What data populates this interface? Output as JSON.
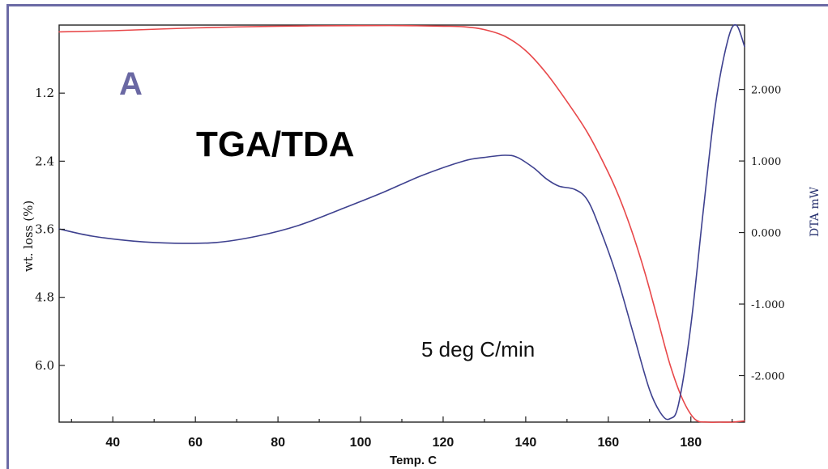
{
  "chart_data": {
    "type": "line",
    "panel_label": "A",
    "title": "TGA/TDA",
    "annotation": "5 deg C/min",
    "xlabel": "Temp. C",
    "ylabel": "wt. loss (%)",
    "y2label": "DTA mW",
    "xlim": [
      27,
      193
    ],
    "ylim": [
      0,
      7.0
    ],
    "y_inverted": true,
    "y2lim": [
      -2.65,
      2.9
    ],
    "xticks": [
      40,
      60,
      80,
      100,
      120,
      140,
      160,
      180
    ],
    "xtick_labels": [
      "40",
      "60",
      "80",
      "100",
      "120",
      "140",
      "160",
      "180"
    ],
    "yticks": [
      1.2,
      2.4,
      3.6,
      4.8,
      6.0
    ],
    "ytick_labels": [
      "1.2",
      "2.4",
      "3.6",
      "4.8",
      "6.0"
    ],
    "y2ticks": [
      2.0,
      1.0,
      0.0,
      -1.0,
      -2.0
    ],
    "y2tick_labels": [
      "2.000",
      "1.000",
      "0.000",
      "-1.000",
      "-2.000"
    ],
    "grid": false,
    "series": [
      {
        "name": "",
        "axis": "left",
        "color": "#e8484a",
        "x": [
          27,
          40,
          60,
          80,
          100,
          110,
          120,
          125,
          130,
          135,
          140,
          145,
          150,
          155,
          160,
          163,
          166,
          169,
          172,
          175,
          178,
          181,
          184,
          187,
          190,
          193
        ],
        "y": [
          0.12,
          0.1,
          0.05,
          0.02,
          0.01,
          0.01,
          0.02,
          0.03,
          0.08,
          0.2,
          0.45,
          0.85,
          1.35,
          1.9,
          2.6,
          3.1,
          3.7,
          4.4,
          5.2,
          6.0,
          6.6,
          6.95,
          7.0,
          7.0,
          7.0,
          6.98
        ]
      },
      {
        "name": "",
        "axis": "right",
        "color": "#3e418f",
        "x": [
          27,
          35,
          45,
          55,
          65,
          75,
          85,
          95,
          105,
          115,
          125,
          130,
          135,
          138,
          142,
          145,
          148,
          152,
          155,
          158,
          162,
          166,
          170,
          173,
          175,
          177,
          180,
          183,
          186,
          189,
          191,
          193
        ],
        "y": [
          0.05,
          -0.05,
          -0.12,
          -0.15,
          -0.14,
          -0.05,
          0.1,
          0.32,
          0.55,
          0.8,
          1.0,
          1.05,
          1.08,
          1.05,
          0.9,
          0.75,
          0.65,
          0.6,
          0.45,
          0.05,
          -0.6,
          -1.4,
          -2.2,
          -2.55,
          -2.6,
          -2.4,
          -1.3,
          0.3,
          1.8,
          2.7,
          2.9,
          2.6
        ]
      }
    ]
  }
}
